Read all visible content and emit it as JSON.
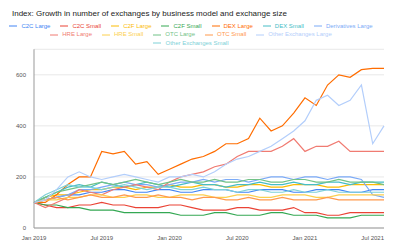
{
  "chart_data": {
    "type": "line",
    "title": "Index: Growth in number of exchanges by business model and exchange size",
    "categories": [
      "Jan 2019",
      null,
      null,
      null,
      null,
      null,
      "Jul 2019",
      null,
      null,
      null,
      null,
      null,
      "Jan 2020",
      null,
      null,
      null,
      null,
      null,
      "Jul 2020",
      null,
      null,
      null,
      null,
      null,
      "Jan 2021",
      null,
      null,
      null,
      null,
      null,
      "Jul 2021",
      null
    ],
    "ylim": [
      0,
      700
    ],
    "yticks": [
      0,
      200,
      400,
      600
    ],
    "grid": true,
    "legend": "top",
    "marker": "none",
    "series": [
      {
        "name": "C2C Large",
        "color": "#4285f4",
        "values": [
          100,
          110,
          120,
          130,
          130,
          140,
          140,
          150,
          150,
          140,
          140,
          150,
          150,
          140,
          140,
          150,
          150,
          150,
          140,
          140,
          150,
          150,
          150,
          140,
          140,
          150,
          150,
          150,
          140,
          140,
          150,
          150
        ]
      },
      {
        "name": "C2C Small",
        "color": "#ea4335",
        "values": [
          100,
          90,
          80,
          80,
          90,
          90,
          100,
          90,
          90,
          80,
          80,
          80,
          90,
          90,
          80,
          70,
          70,
          70,
          80,
          80,
          70,
          70,
          70,
          80,
          60,
          60,
          50,
          50,
          60,
          60,
          60,
          60
        ]
      },
      {
        "name": "C2F Large",
        "color": "#fbbc04",
        "values": [
          100,
          120,
          130,
          130,
          140,
          150,
          150,
          160,
          160,
          150,
          160,
          160,
          170,
          160,
          160,
          170,
          170,
          160,
          160,
          170,
          170,
          160,
          160,
          170,
          170,
          170,
          160,
          160,
          170,
          170,
          170,
          170
        ]
      },
      {
        "name": "C2F Small",
        "color": "#34a853",
        "values": [
          100,
          90,
          90,
          80,
          80,
          70,
          70,
          70,
          60,
          60,
          60,
          60,
          60,
          50,
          50,
          50,
          60,
          60,
          50,
          50,
          50,
          60,
          60,
          50,
          50,
          50,
          40,
          40,
          40,
          50,
          50,
          50
        ]
      },
      {
        "name": "DEX Large",
        "color": "#ff6d01",
        "values": [
          100,
          100,
          130,
          170,
          200,
          200,
          300,
          290,
          300,
          250,
          260,
          210,
          230,
          250,
          270,
          280,
          300,
          330,
          330,
          350,
          430,
          380,
          400,
          450,
          510,
          480,
          560,
          600,
          590,
          620,
          625,
          625
        ]
      },
      {
        "name": "DEX Small",
        "color": "#46bdc6",
        "values": [
          100,
          120,
          140,
          160,
          170,
          160,
          180,
          170,
          160,
          170,
          180,
          170,
          160,
          170,
          180,
          170,
          170,
          160,
          170,
          170,
          180,
          170,
          170,
          180,
          170,
          170,
          180,
          180,
          170,
          180,
          180,
          180
        ]
      },
      {
        "name": "Derivatives Large",
        "color": "#7baaf7",
        "values": [
          100,
          110,
          120,
          130,
          150,
          150,
          160,
          170,
          180,
          170,
          170,
          160,
          170,
          180,
          180,
          190,
          180,
          190,
          190,
          180,
          190,
          200,
          200,
          190,
          200,
          200,
          190,
          200,
          200,
          190,
          130,
          120
        ]
      },
      {
        "name": "HRE Large",
        "color": "#f07b72",
        "values": [
          100,
          80,
          100,
          120,
          150,
          140,
          130,
          150,
          160,
          170,
          160,
          150,
          180,
          200,
          210,
          220,
          240,
          250,
          280,
          300,
          300,
          300,
          320,
          350,
          300,
          320,
          320,
          340,
          300,
          300,
          300,
          300
        ]
      },
      {
        "name": "HRE Small",
        "color": "#fcd04f",
        "values": [
          100,
          110,
          110,
          120,
          120,
          130,
          130,
          120,
          120,
          130,
          130,
          120,
          120,
          130,
          130,
          130,
          120,
          120,
          130,
          130,
          120,
          120,
          130,
          130,
          130,
          120,
          120,
          130,
          130,
          130,
          130,
          130
        ]
      },
      {
        "name": "OTC Large",
        "color": "#71c287",
        "values": [
          100,
          120,
          140,
          150,
          160,
          170,
          180,
          170,
          180,
          190,
          180,
          170,
          180,
          190,
          180,
          180,
          190,
          180,
          180,
          190,
          190,
          180,
          180,
          190,
          190,
          180,
          180,
          190,
          180,
          180,
          180,
          170
        ]
      },
      {
        "name": "OTC Small",
        "color": "#ff994d",
        "values": [
          100,
          110,
          120,
          110,
          120,
          130,
          120,
          120,
          130,
          120,
          120,
          130,
          120,
          120,
          110,
          120,
          120,
          110,
          110,
          120,
          110,
          110,
          120,
          110,
          110,
          110,
          120,
          110,
          110,
          110,
          110,
          110
        ]
      },
      {
        "name": "Other Exchanges Small",
        "color": "#7ed1d7",
        "values": [
          100,
          130,
          150,
          170,
          160,
          160,
          150,
          160,
          170,
          160,
          150,
          160,
          160,
          150,
          150,
          160,
          150,
          150,
          140,
          150,
          150,
          140,
          140,
          150,
          140,
          140,
          150,
          140,
          140,
          140,
          140,
          140
        ]
      },
      {
        "name": "Other Exchanges Large",
        "color": "#b3cefb",
        "values": [
          100,
          110,
          150,
          200,
          220,
          200,
          190,
          200,
          210,
          200,
          190,
          180,
          200,
          200,
          210,
          200,
          220,
          250,
          270,
          280,
          300,
          320,
          350,
          380,
          420,
          500,
          520,
          480,
          500,
          560,
          330,
          400
        ]
      }
    ]
  }
}
